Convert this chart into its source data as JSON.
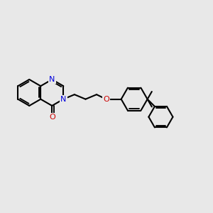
{
  "bg": "#e8e8e8",
  "bc": "#000000",
  "Nc": "#0000dd",
  "Oc": "#cc0000",
  "lw": 1.5,
  "dbo": 0.032,
  "fs": 8.0,
  "dpi": 100,
  "fw": 3.0,
  "fh": 3.0,
  "r": 0.255,
  "xlim": [
    -1.5,
    2.6
  ],
  "ylim": [
    -1.0,
    0.8
  ]
}
